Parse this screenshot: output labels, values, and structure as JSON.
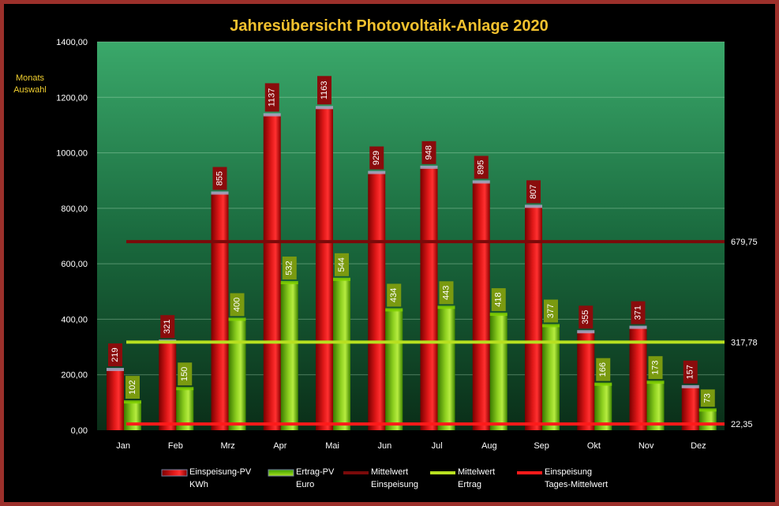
{
  "chart_data": {
    "type": "bar",
    "title": "Jahresübersicht Photovoltaik-Anlage  2020",
    "side_label": [
      "Monats",
      "Auswahl"
    ],
    "categories": [
      "Jan",
      "Feb",
      "Mrz",
      "Apr",
      "Mai",
      "Jun",
      "Jul",
      "Aug",
      "Sep",
      "Okt",
      "Nov",
      "Dez"
    ],
    "ylim": [
      0,
      1400
    ],
    "yticks": [
      "0,00",
      "200,00",
      "400,00",
      "600,00",
      "800,00",
      "1000,00",
      "1200,00",
      "1400,00"
    ],
    "ytick_values": [
      0,
      200,
      400,
      600,
      800,
      1000,
      1200,
      1400
    ],
    "grid": true,
    "legend_position": "bottom",
    "series": [
      {
        "name": [
          "Einspeisung-PV",
          "KWh"
        ],
        "color": "#cc1a1a",
        "values": [
          219,
          321,
          855,
          1137,
          1163,
          929,
          948,
          895,
          807,
          355,
          371,
          157
        ],
        "labels": [
          "219",
          "321",
          "855",
          "1137",
          "1163",
          "929",
          "948",
          "895",
          "807",
          "355",
          "371",
          "157"
        ]
      },
      {
        "name": [
          "Ertrag-PV",
          "Euro"
        ],
        "color": "#8ed020",
        "values": [
          102,
          150,
          400,
          532,
          544,
          434,
          443,
          418,
          377,
          166,
          173,
          73
        ],
        "labels": [
          "102",
          "150",
          "400",
          "532",
          "544",
          "434",
          "443",
          "418",
          "377",
          "166",
          "173",
          "73"
        ]
      }
    ],
    "reference_lines": [
      {
        "name": [
          "Mittelwert",
          "Einspeisung"
        ],
        "color": "#7a0a0a",
        "value": 679.75,
        "label": "679,75"
      },
      {
        "name": [
          "Mittelwert",
          "Ertrag"
        ],
        "color": "#b8e020",
        "value": 317.78,
        "label": "317,78"
      },
      {
        "name": [
          "Einspeisung",
          "Tages-Mittelwert"
        ],
        "color": "#ff1a1a",
        "value": 22.35,
        "label": "22,35"
      }
    ]
  }
}
